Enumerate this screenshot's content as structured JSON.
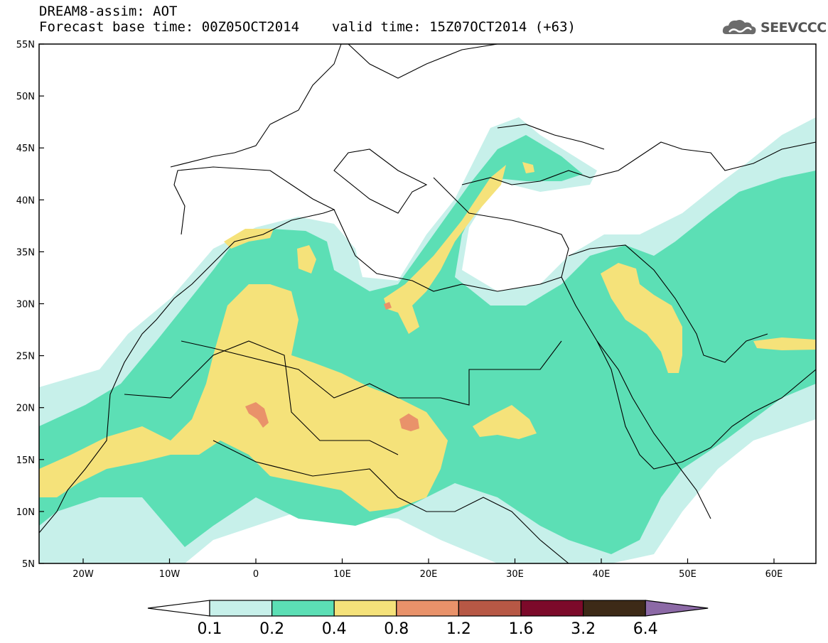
{
  "header": {
    "title": "DREAM8-assim: AOT",
    "base_time": "Forecast base time: 00Z05OCT2014",
    "valid_time": "valid time: 15Z07OCT2014 (+63)",
    "logo_text": "SEEVCCC"
  },
  "map": {
    "lat_labels": [
      "55N",
      "50N",
      "45N",
      "40N",
      "35N",
      "30N",
      "25N",
      "20N",
      "15N",
      "10N",
      "5N"
    ],
    "lon_labels": [
      "20W",
      "10W",
      "0",
      "10E",
      "20E",
      "30E",
      "40E",
      "50E",
      "60E"
    ],
    "ocean_color": "#ffffff",
    "coast_color": "#000000"
  },
  "legend": {
    "labels": [
      "0.1",
      "0.2",
      "0.4",
      "0.8",
      "1.2",
      "1.6",
      "3.2",
      "6.4"
    ],
    "colors": [
      "#ffffff",
      "#c7f0ea",
      "#5cdfb5",
      "#f5e27a",
      "#e9926a",
      "#b75845",
      "#7c0a2a",
      "#3d2a17",
      "#8c69a6"
    ]
  }
}
